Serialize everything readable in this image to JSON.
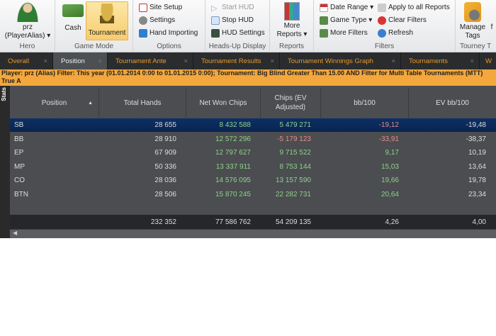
{
  "ribbon": {
    "hero": {
      "name": "prz",
      "alias": "(PlayerAlias) ▾",
      "label": "Hero"
    },
    "game_mode": {
      "cash": "Cash",
      "tournament": "Tournament",
      "label": "Game Mode",
      "selected": "Tournament"
    },
    "options": {
      "site_setup": "Site Setup",
      "settings": "Settings",
      "hand_importing": "Hand Importing",
      "label": "Options"
    },
    "hud": {
      "start": "Start HUD",
      "stop": "Stop HUD",
      "settings": "HUD Settings",
      "label": "Heads-Up Display"
    },
    "reports": {
      "more1": "More",
      "more2": "Reports ▾",
      "label": "Reports"
    },
    "filters": {
      "date_range": "Date Range ▾",
      "game_type": "Game Type ▾",
      "more_filters": "More Filters",
      "apply_all": "Apply to all Reports",
      "clear": "Clear Filters",
      "refresh": "Refresh",
      "label": "Filters"
    },
    "tourney": {
      "manage1": "Manage",
      "manage2": "Tags",
      "extra": "f",
      "label": "Tourney T"
    }
  },
  "tabs": [
    "Overall",
    "Position",
    "Tournament Ante",
    "Tournament Results",
    "Tournament Winnings Graph",
    "Tournaments",
    "W"
  ],
  "active_tab": "Position",
  "filter_text": "Player: prz (Alias)  Filter: This year (01.01.2014 0:00 to 01.01.2015 0:00); Tournament: Big Blind Greater Than 15.00 AND Filter for Multi Table Tournaments (MTT) True A",
  "stats_label": "Stats",
  "table": {
    "columns": [
      "Position",
      "Total Hands",
      "Net Won Chips",
      "Chips (EV Adjusted)",
      "bb/100",
      "EV bb/100"
    ],
    "sort_indicator": "▲",
    "rows": [
      [
        "SB",
        "28 655",
        "8 432 588",
        "5 479 271",
        "-19,12",
        "-19,48"
      ],
      [
        "BB",
        "28 910",
        "12 572 296",
        "-5 179 123",
        "-33,91",
        "-38,37"
      ],
      [
        "EP",
        "67 909",
        "12 797 627",
        "9 715 522",
        "9,17",
        "10,19"
      ],
      [
        "MP",
        "50 336",
        "13 337 911",
        "8 753 144",
        "15,03",
        "13,64"
      ],
      [
        "CO",
        "28 036",
        "14 576 095",
        "13 157 590",
        "19,66",
        "19,78"
      ],
      [
        "BTN",
        "28 506",
        "15 870 245",
        "22 282 731",
        "20,64",
        "23,34"
      ]
    ],
    "totals": [
      "",
      "232 352",
      "77 586 762",
      "54 209 135",
      "4,26",
      "4,00"
    ],
    "selected_row": "SB"
  },
  "colors": {
    "accent": "#f3a73c",
    "positive": "#8fd08a",
    "negative": "#e48b8b",
    "selection": "#0d2f66"
  }
}
